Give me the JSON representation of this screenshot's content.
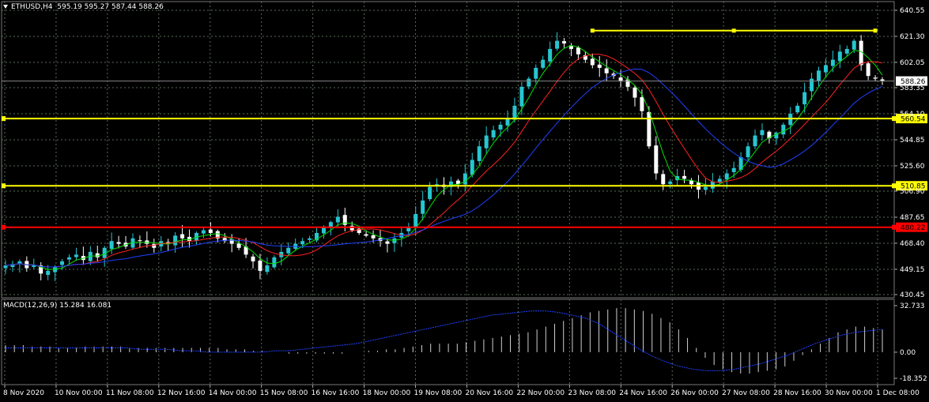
{
  "header": {
    "symbol": "ETHUSD,H4",
    "ohlc": "595.19 595.27 587.44 588.26"
  },
  "macd_header": "MACD(12,26,9) 15.284 16.081",
  "colors": {
    "background": "#000000",
    "grid": "#5a6b5a",
    "bull": "#26c6d0",
    "bear": "#ffffff",
    "ma_fast": "#00e000",
    "ma_mid": "#ff2020",
    "ma_slow": "#2040ff",
    "yellow": "#ffff00",
    "red": "#ff0000",
    "macd_signal": "#2040ff"
  },
  "chart_data": [
    {
      "type": "candlestick",
      "title": "ETHUSD,H4",
      "ylim": [
        430.45,
        645
      ],
      "y_ticks": [
        "640.55",
        "621.30",
        "602.05",
        "583.35",
        "564.10",
        "544.85",
        "525.60",
        "506.90",
        "487.65",
        "468.40",
        "449.15",
        "430.45"
      ],
      "x_ticks": [
        "8 Nov 2020",
        "10 Nov 00:00",
        "11 Nov 08:00",
        "12 Nov 16:00",
        "14 Nov 00:00",
        "15 Nov 08:00",
        "16 Nov 16:00",
        "18 Nov 00:00",
        "19 Nov 08:00",
        "20 Nov 16:00",
        "22 Nov 00:00",
        "23 Nov 08:00",
        "24 Nov 16:00",
        "26 Nov 00:00",
        "27 Nov 08:00",
        "28 Nov 16:00",
        "30 Nov 00:00",
        "1 Dec 08:00"
      ],
      "close_path": [
        452,
        453,
        455,
        450,
        452,
        446,
        448,
        451,
        455,
        458,
        460,
        456,
        462,
        458,
        465,
        470,
        468,
        466,
        472,
        470,
        468,
        465,
        470,
        468,
        474,
        472,
        470,
        476,
        478,
        476,
        472,
        470,
        468,
        465,
        460,
        455,
        448,
        452,
        458,
        462,
        465,
        468,
        470,
        472,
        476,
        480,
        484,
        488,
        482,
        478,
        476,
        474,
        472,
        470,
        468,
        472,
        476,
        480,
        490,
        500,
        510,
        512,
        510,
        514,
        512,
        520,
        530,
        540,
        548,
        552,
        556,
        560,
        570,
        584,
        590,
        598,
        604,
        612,
        618,
        616,
        612,
        608,
        604,
        600,
        598,
        594,
        592,
        588,
        584,
        576,
        566,
        540,
        520,
        512,
        514,
        518,
        516,
        512,
        508,
        510,
        514,
        516,
        520,
        524,
        532,
        540,
        548,
        552,
        546,
        550,
        556,
        564,
        570,
        580,
        590,
        596,
        600,
        604,
        610,
        612,
        618,
        600,
        592,
        590,
        588.26
      ],
      "price_lines": [
        {
          "label": "560.54",
          "value": 560.54,
          "color": "#ffff00"
        },
        {
          "label": "510.85",
          "value": 510.85,
          "color": "#ffff00"
        },
        {
          "label": "480.22",
          "value": 480.22,
          "color": "#ff0000"
        }
      ],
      "current_price": {
        "label": "588.26",
        "value": 588.26
      },
      "trendline": {
        "value": 625.5,
        "from_index": 83,
        "to_index": 123
      }
    },
    {
      "type": "histogram",
      "title": "MACD(12,26,9) 15.284 16.081",
      "ylim": [
        -18.352,
        32.733
      ],
      "y_ticks": [
        "32.733",
        "0.00",
        "-18.352"
      ],
      "histogram": [
        5,
        5,
        5,
        4,
        4,
        4,
        3,
        3,
        3,
        4,
        4,
        4,
        4,
        4,
        3,
        3,
        3,
        3,
        3,
        3,
        3,
        3,
        3,
        3,
        3,
        2,
        2,
        2,
        1,
        1,
        0,
        0,
        -1,
        -1,
        -1,
        -1,
        -1,
        -1,
        -1,
        0,
        0,
        1,
        1,
        2,
        2,
        3,
        4,
        5,
        6,
        6,
        6,
        6,
        7,
        8,
        9,
        10,
        11,
        12,
        13,
        14,
        16,
        18,
        20,
        22,
        24,
        26,
        28,
        29,
        30,
        31,
        31,
        30,
        29,
        27,
        24,
        21,
        16,
        10,
        3,
        -4,
        -9,
        -12,
        -14,
        -15,
        -15,
        -14,
        -13,
        -12,
        -10,
        -6,
        -2,
        2,
        6,
        10,
        14,
        16,
        18,
        18,
        17,
        16
      ],
      "signal": [
        3,
        3,
        3,
        3,
        3,
        3,
        3,
        3,
        3,
        3,
        2,
        2,
        2,
        1,
        1,
        0,
        0,
        0,
        0,
        0,
        1,
        1,
        2,
        3,
        4,
        5,
        6,
        8,
        10,
        12,
        14,
        16,
        18,
        20,
        22,
        24,
        26,
        27,
        28,
        29,
        29,
        28,
        26,
        24,
        20,
        14,
        8,
        2,
        -3,
        -7,
        -10,
        -12,
        -13,
        -13,
        -12,
        -10,
        -8,
        -5,
        -2,
        2,
        6,
        9,
        12,
        14,
        15,
        16
      ]
    }
  ]
}
